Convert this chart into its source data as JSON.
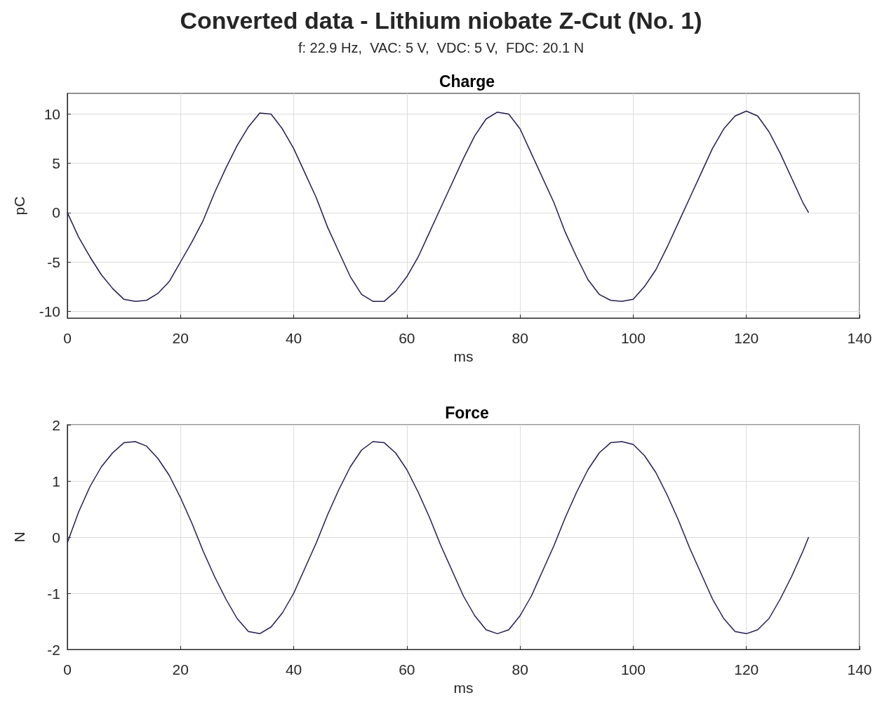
{
  "chart_data": [
    {
      "type": "line",
      "title": "Charge",
      "annotations": [
        "Converted data - Lithium niobate Z-Cut (No. 1)",
        "f: 22.9 Hz,  VAC: 5 V,  VDC: 5 V,  FDC: 20.1 N"
      ],
      "xlabel": "ms",
      "ylabel": "pC",
      "xlim": [
        0,
        140
      ],
      "xticks": [
        0,
        20,
        40,
        60,
        80,
        100,
        120,
        140
      ],
      "ylim": [
        -10.7,
        12.1
      ],
      "yticks": [
        -10,
        -5,
        0,
        5,
        10
      ],
      "grid": true,
      "x": [
        0,
        2,
        4,
        6,
        8,
        10,
        12,
        14,
        16,
        18,
        20,
        22,
        24,
        26,
        28,
        30,
        32,
        34,
        36,
        38,
        40,
        42,
        44,
        46,
        48,
        50,
        52,
        54,
        56,
        58,
        60,
        62,
        64,
        66,
        68,
        70,
        72,
        74,
        76,
        78,
        80,
        82,
        84,
        86,
        88,
        90,
        92,
        94,
        96,
        98,
        100,
        102,
        104,
        106,
        108,
        110,
        112,
        114,
        116,
        118,
        120,
        122,
        124,
        126,
        128,
        130,
        131
      ],
      "series": [
        {
          "color": "#221d52",
          "values": [
            0,
            -2.5,
            -4.5,
            -6.3,
            -7.7,
            -8.8,
            -9.0,
            -8.9,
            -8.2,
            -7.0,
            -5.0,
            -3.0,
            -0.8,
            2.0,
            4.5,
            6.8,
            8.7,
            10.1,
            10.0,
            8.5,
            6.5,
            4.0,
            1.5,
            -1.5,
            -4.0,
            -6.5,
            -8.3,
            -9.0,
            -9.0,
            -8.0,
            -6.5,
            -4.5,
            -2.0,
            0.5,
            3.0,
            5.5,
            7.8,
            9.5,
            10.2,
            10.0,
            8.5,
            6.0,
            3.5,
            1.0,
            -2.0,
            -4.5,
            -6.8,
            -8.3,
            -8.9,
            -9.0,
            -8.8,
            -7.5,
            -5.8,
            -3.5,
            -1.0,
            1.5,
            4.0,
            6.5,
            8.5,
            9.8,
            10.3,
            9.8,
            8.2,
            6.0,
            3.5,
            1.0,
            0.0
          ]
        }
      ]
    },
    {
      "type": "line",
      "title": "Force",
      "xlabel": "ms",
      "ylabel": "N",
      "xlim": [
        0,
        140
      ],
      "xticks": [
        0,
        20,
        40,
        60,
        80,
        100,
        120,
        140
      ],
      "ylim": [
        -2,
        2
      ],
      "yticks": [
        -2,
        -1,
        0,
        1,
        2
      ],
      "grid": true,
      "x": [
        0,
        2,
        4,
        6,
        8,
        10,
        12,
        14,
        16,
        18,
        20,
        22,
        24,
        26,
        28,
        30,
        32,
        34,
        36,
        38,
        40,
        42,
        44,
        46,
        48,
        50,
        52,
        54,
        56,
        58,
        60,
        62,
        64,
        66,
        68,
        70,
        72,
        74,
        76,
        78,
        80,
        82,
        84,
        86,
        88,
        90,
        92,
        94,
        96,
        98,
        100,
        102,
        104,
        106,
        108,
        110,
        112,
        114,
        116,
        118,
        120,
        122,
        124,
        126,
        128,
        130,
        131
      ],
      "series": [
        {
          "color": "#221d52",
          "values": [
            -0.1,
            0.45,
            0.9,
            1.25,
            1.5,
            1.68,
            1.7,
            1.62,
            1.4,
            1.1,
            0.7,
            0.25,
            -0.25,
            -0.7,
            -1.1,
            -1.45,
            -1.68,
            -1.72,
            -1.6,
            -1.35,
            -1.0,
            -0.55,
            -0.1,
            0.4,
            0.85,
            1.25,
            1.55,
            1.7,
            1.68,
            1.5,
            1.2,
            0.8,
            0.35,
            -0.15,
            -0.6,
            -1.05,
            -1.4,
            -1.65,
            -1.72,
            -1.65,
            -1.4,
            -1.05,
            -0.6,
            -0.15,
            0.35,
            0.8,
            1.2,
            1.5,
            1.68,
            1.7,
            1.65,
            1.45,
            1.15,
            0.75,
            0.3,
            -0.2,
            -0.65,
            -1.1,
            -1.45,
            -1.68,
            -1.72,
            -1.65,
            -1.45,
            -1.1,
            -0.7,
            -0.25,
            0
          ]
        }
      ]
    }
  ]
}
